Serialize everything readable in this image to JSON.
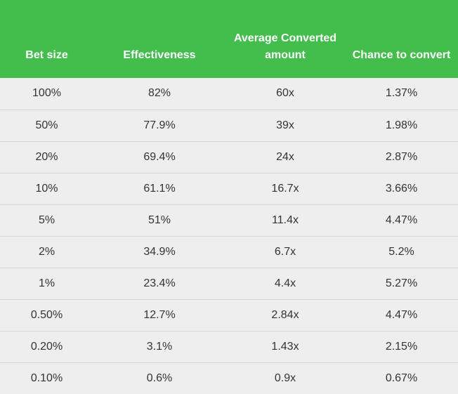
{
  "colors": {
    "header_bg": "#43be4d",
    "header_text": "#ffffff",
    "body_bg": "#efeeee",
    "body_text": "#333333",
    "row_divider": "#d8d7d7"
  },
  "table": {
    "headers": [
      "Bet size",
      "Effectiveness",
      "Average Converted amount",
      "Chance to convert"
    ],
    "rows": [
      [
        "100%",
        "82%",
        "60x",
        "1.37%"
      ],
      [
        "50%",
        "77.9%",
        "39x",
        "1.98%"
      ],
      [
        "20%",
        "69.4%",
        "24x",
        "2.87%"
      ],
      [
        "10%",
        "61.1%",
        "16.7x",
        "3.66%"
      ],
      [
        "5%",
        "51%",
        "11.4x",
        "4.47%"
      ],
      [
        "2%",
        "34.9%",
        "6.7x",
        "5.2%"
      ],
      [
        "1%",
        "23.4%",
        "4.4x",
        "5.27%"
      ],
      [
        "0.50%",
        "12.7%",
        "2.84x",
        "4.47%"
      ],
      [
        "0.20%",
        "3.1%",
        "1.43x",
        "2.15%"
      ],
      [
        "0.10%",
        "0.6%",
        "0.9x",
        "0.67%"
      ]
    ]
  }
}
